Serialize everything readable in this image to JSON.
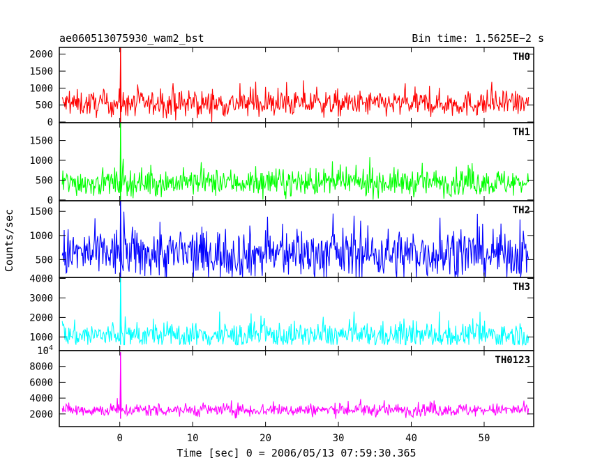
{
  "chart_data": {
    "type": "line",
    "title_left": "ae060513075930_wam2_bst",
    "title_right": "Bin time: 1.5625E−2 s",
    "xlabel": "Time [sec] 0 = 2006/05/13 07:59:30.365",
    "ylabel": "Counts/sec",
    "xlim": [
      -8.3,
      56.8
    ],
    "x_ticks": [
      0,
      10,
      20,
      30,
      40,
      50
    ],
    "x_range": [
      -7.9,
      56.1
    ],
    "burst_time": 0.1,
    "grid": false,
    "panels": [
      {
        "name": "TH0",
        "color": "#ff0000",
        "ylim": [
          -20,
          2200
        ],
        "yticks": [
          0,
          500,
          1000,
          1500,
          2000
        ],
        "ytick_labels": [
          "0",
          "500",
          "1000",
          "1500",
          "2000"
        ],
        "baseline_mean": 540,
        "baseline_noise": 190,
        "min_floor": 0,
        "peak_value": 2200,
        "tail_max": 1300
      },
      {
        "name": "TH1",
        "color": "#00ff00",
        "ylim": [
          -20,
          1950
        ],
        "yticks": [
          0,
          500,
          1000,
          1500
        ],
        "ytick_labels": [
          "0",
          "500",
          "1000",
          "1500"
        ],
        "baseline_mean": 440,
        "baseline_noise": 170,
        "min_floor": 0,
        "peak_value": 1950,
        "tail_max": 1200
      },
      {
        "name": "TH2",
        "color": "#0000ff",
        "ylim": [
          130,
          1720
        ],
        "yticks": [
          500,
          1000,
          1500
        ],
        "ytick_labels": [
          "500",
          "1000",
          "1500"
        ],
        "baseline_mean": 620,
        "baseline_noise": 260,
        "min_floor": 130,
        "peak_value": 1720,
        "tail_max": 1650
      },
      {
        "name": "TH3",
        "color": "#00ffff",
        "ylim": [
          300,
          4050
        ],
        "yticks": [
          1000,
          2000,
          3000,
          4000
        ],
        "ytick_labels": [
          "1000",
          "2000",
          "3000",
          "4000"
        ],
        "baseline_mean": 1080,
        "baseline_noise": 330,
        "min_floor": 600,
        "peak_value": 4050,
        "tail_max": 2300
      },
      {
        "name": "TH0123",
        "color": "#ff00ff",
        "ylim": [
          400,
          10000
        ],
        "yticks": [
          2000,
          4000,
          6000,
          8000,
          10000
        ],
        "ytick_labels": [
          "2000",
          "4000",
          "6000",
          "8000",
          "10⁴"
        ],
        "baseline_mean": 2500,
        "baseline_noise": 420,
        "min_floor": 1400,
        "peak_value": 9800,
        "tail_max": 4400
      }
    ]
  }
}
